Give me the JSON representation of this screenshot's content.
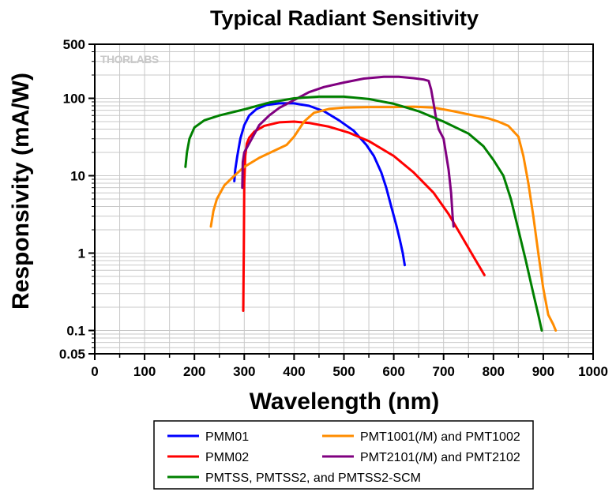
{
  "chart_data": {
    "type": "line",
    "title": "Typical Radiant Sensitivity",
    "xlabel": "Wavelength (nm)",
    "ylabel": "Responsivity (mA/W)",
    "xlim": [
      0,
      1000
    ],
    "ylim": [
      0.05,
      500
    ],
    "yscale": "log",
    "grid": true,
    "x_ticks": [
      "0",
      "100",
      "200",
      "300",
      "400",
      "500",
      "600",
      "700",
      "800",
      "900",
      "1000"
    ],
    "y_ticks": [
      {
        "value": 500,
        "label": "500"
      },
      {
        "value": 100,
        "label": "100"
      },
      {
        "value": 10,
        "label": "10"
      },
      {
        "value": 1,
        "label": "1"
      },
      {
        "value": 0.1,
        "label": "0.1"
      },
      {
        "value": 0.05,
        "label": "0.05"
      }
    ],
    "watermark": "THORLABS",
    "legend_position": "bottom",
    "series": [
      {
        "name": "PMM01",
        "color": "#0000ff",
        "points": [
          [
            280,
            8.5
          ],
          [
            282,
            12
          ],
          [
            286,
            18
          ],
          [
            292,
            30
          ],
          [
            300,
            45
          ],
          [
            310,
            60
          ],
          [
            325,
            73
          ],
          [
            345,
            82
          ],
          [
            370,
            86
          ],
          [
            400,
            86
          ],
          [
            430,
            80
          ],
          [
            460,
            68
          ],
          [
            490,
            52
          ],
          [
            520,
            38
          ],
          [
            545,
            25
          ],
          [
            560,
            18
          ],
          [
            575,
            11
          ],
          [
            585,
            7
          ],
          [
            595,
            4
          ],
          [
            605,
            2.3
          ],
          [
            612,
            1.5
          ],
          [
            618,
            1
          ],
          [
            622,
            0.7
          ]
        ]
      },
      {
        "name": "PMM02",
        "color": "#ff0000",
        "points": [
          [
            298,
            0.18
          ],
          [
            299,
            1
          ],
          [
            300,
            8
          ],
          [
            302,
            18
          ],
          [
            305,
            26
          ],
          [
            310,
            31
          ],
          [
            320,
            37
          ],
          [
            340,
            44
          ],
          [
            370,
            49
          ],
          [
            400,
            50
          ],
          [
            430,
            48
          ],
          [
            470,
            43
          ],
          [
            510,
            36
          ],
          [
            550,
            28
          ],
          [
            600,
            18
          ],
          [
            640,
            11
          ],
          [
            680,
            6
          ],
          [
            710,
            3.2
          ],
          [
            740,
            1.5
          ],
          [
            760,
            0.9
          ],
          [
            782,
            0.52
          ]
        ]
      },
      {
        "name": "PMT1001(/M) and PMT1002",
        "color": "#ff8c00",
        "points": [
          [
            233,
            2.2
          ],
          [
            238,
            3.5
          ],
          [
            245,
            5
          ],
          [
            260,
            7.5
          ],
          [
            280,
            10
          ],
          [
            300,
            13
          ],
          [
            330,
            17
          ],
          [
            360,
            21
          ],
          [
            385,
            25
          ],
          [
            400,
            32
          ],
          [
            420,
            50
          ],
          [
            440,
            65
          ],
          [
            470,
            73
          ],
          [
            500,
            76
          ],
          [
            550,
            77
          ],
          [
            600,
            77
          ],
          [
            640,
            78
          ],
          [
            680,
            76
          ],
          [
            720,
            68
          ],
          [
            760,
            60
          ],
          [
            790,
            55
          ],
          [
            810,
            50
          ],
          [
            830,
            44
          ],
          [
            850,
            32
          ],
          [
            860,
            18
          ],
          [
            870,
            8
          ],
          [
            880,
            3
          ],
          [
            890,
            1
          ],
          [
            900,
            0.35
          ],
          [
            910,
            0.16
          ],
          [
            920,
            0.12
          ],
          [
            925,
            0.1
          ]
        ]
      },
      {
        "name": "PMT2101(/M) and PMT2102",
        "color": "#800080",
        "points": [
          [
            296,
            7
          ],
          [
            297,
            15
          ],
          [
            300,
            20
          ],
          [
            315,
            30
          ],
          [
            330,
            45
          ],
          [
            350,
            60
          ],
          [
            370,
            75
          ],
          [
            400,
            95
          ],
          [
            430,
            120
          ],
          [
            460,
            140
          ],
          [
            500,
            160
          ],
          [
            540,
            180
          ],
          [
            580,
            190
          ],
          [
            610,
            190
          ],
          [
            640,
            182
          ],
          [
            660,
            175
          ],
          [
            670,
            168
          ],
          [
            675,
            130
          ],
          [
            680,
            85
          ],
          [
            685,
            55
          ],
          [
            690,
            40
          ],
          [
            700,
            30
          ],
          [
            710,
            12
          ],
          [
            715,
            6
          ],
          [
            718,
            3
          ],
          [
            720,
            2.2
          ]
        ]
      },
      {
        "name": "PMTSS, PMTSS2, and PMTSS2-SCM",
        "color": "#008000",
        "points": [
          [
            182,
            13
          ],
          [
            185,
            20
          ],
          [
            190,
            30
          ],
          [
            200,
            42
          ],
          [
            220,
            52
          ],
          [
            250,
            60
          ],
          [
            300,
            72
          ],
          [
            350,
            88
          ],
          [
            400,
            100
          ],
          [
            450,
            105
          ],
          [
            500,
            105
          ],
          [
            550,
            98
          ],
          [
            600,
            85
          ],
          [
            650,
            68
          ],
          [
            700,
            50
          ],
          [
            750,
            35
          ],
          [
            780,
            24
          ],
          [
            800,
            16
          ],
          [
            820,
            10
          ],
          [
            835,
            5
          ],
          [
            850,
            2
          ],
          [
            865,
            0.8
          ],
          [
            880,
            0.3
          ],
          [
            890,
            0.16
          ],
          [
            897,
            0.1
          ]
        ]
      }
    ]
  }
}
